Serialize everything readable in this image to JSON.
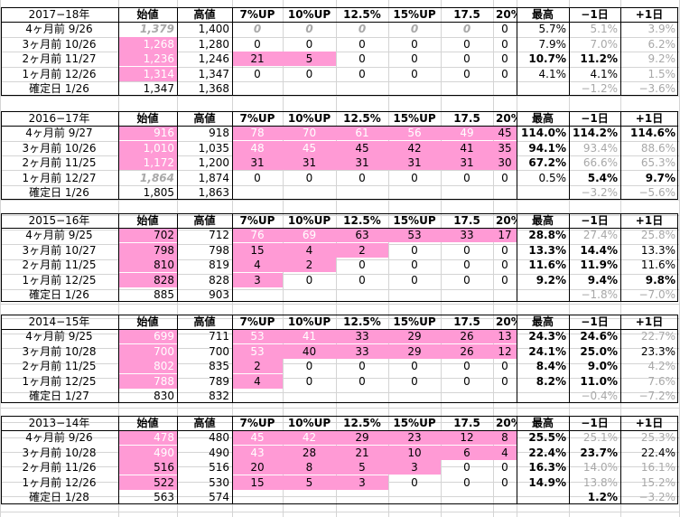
{
  "headers": {
    "start": "始値",
    "high": "高値",
    "p7": "7%UP",
    "p10": "10%UP",
    "p125": "12.5%",
    "p15": "15%UP",
    "p175": "17.5",
    "p20": "20%UP",
    "max": "最高",
    "minus1": "−1日",
    "plus1": "+1日"
  },
  "blocks": [
    {
      "title": "2017−18年",
      "rows": [
        {
          "label": "4ヶ月前  9/26",
          "start": "1,379",
          "start_style": "gi",
          "high": "1,400",
          "p": [
            "0",
            "0",
            "0",
            "0",
            "0",
            "0"
          ],
          "p_style": [
            "gi",
            "gi",
            "gi",
            "gi",
            "gi",
            ""
          ],
          "p_pink": [
            0,
            0,
            0,
            0,
            0,
            0
          ],
          "max": "5.7%",
          "max_bold": false,
          "m1": "5.1%",
          "m1_style": "g",
          "p1": "3.9%",
          "p1_style": "g"
        },
        {
          "label": "3ヶ月前  10/26",
          "start": "1,268",
          "start_style": "pw",
          "high": "1,280",
          "p": [
            "0",
            "0",
            "0",
            "0",
            "0",
            "0"
          ],
          "p_style": [
            "",
            "",
            "",
            "",
            "",
            ""
          ],
          "p_pink": [
            0,
            0,
            0,
            0,
            0,
            0
          ],
          "max": "7.9%",
          "max_bold": false,
          "m1": "7.0%",
          "m1_style": "g",
          "p1": "6.2%",
          "p1_style": "g"
        },
        {
          "label": "2ヶ月前  11/27",
          "start": "1,236",
          "start_style": "pw",
          "high": "1,246",
          "p": [
            "21",
            "5",
            "0",
            "0",
            "0",
            "0"
          ],
          "p_style": [
            "",
            "",
            "",
            "",
            "",
            ""
          ],
          "p_pink": [
            1,
            1,
            0,
            0,
            0,
            0
          ],
          "max": "10.7%",
          "max_bold": true,
          "m1": "11.2%",
          "m1_style": "b",
          "p1": "9.2%",
          "p1_style": "g"
        },
        {
          "label": "1ヶ月前  12/26",
          "start": "1,314",
          "start_style": "pw",
          "high": "1,347",
          "p": [
            "0",
            "0",
            "0",
            "0",
            "0",
            "0"
          ],
          "p_style": [
            "",
            "",
            "",
            "",
            "",
            ""
          ],
          "p_pink": [
            0,
            0,
            0,
            0,
            0,
            0
          ],
          "max": "4.1%",
          "max_bold": false,
          "m1": "4.1%",
          "m1_style": "n",
          "p1": "1.5%",
          "p1_style": "g"
        }
      ],
      "confirm": {
        "label": "確定日  1/26",
        "start": "1,347",
        "high": "1,368",
        "m1": "−1.2%",
        "m1_style": "g",
        "p1": "−3.6%",
        "p1_style": "g"
      }
    },
    {
      "title": "2016−17年",
      "rows": [
        {
          "label": "4ヶ月前  9/27",
          "start": "916",
          "start_style": "pw",
          "high": "918",
          "p": [
            "78",
            "70",
            "61",
            "56",
            "49",
            "45"
          ],
          "p_style": [
            "w",
            "w",
            "w",
            "w",
            "w",
            ""
          ],
          "p_pink": [
            1,
            1,
            1,
            1,
            1,
            1
          ],
          "max": "114.0%",
          "max_bold": true,
          "m1": "114.2%",
          "m1_style": "b",
          "p1": "114.6%",
          "p1_style": "b"
        },
        {
          "label": "3ヶ月前  10/26",
          "start": "1,010",
          "start_style": "pw",
          "high": "1,035",
          "p": [
            "48",
            "45",
            "45",
            "42",
            "41",
            "35"
          ],
          "p_style": [
            "w",
            "w",
            "",
            "",
            "",
            ""
          ],
          "p_pink": [
            1,
            1,
            1,
            1,
            1,
            1
          ],
          "max": "94.1%",
          "max_bold": true,
          "m1": "93.4%",
          "m1_style": "g",
          "p1": "88.6%",
          "p1_style": "g"
        },
        {
          "label": "2ヶ月前  11/25",
          "start": "1,172",
          "start_style": "pw",
          "high": "1,200",
          "p": [
            "31",
            "31",
            "31",
            "31",
            "31",
            "30"
          ],
          "p_style": [
            "",
            "",
            "",
            "",
            "",
            ""
          ],
          "p_pink": [
            1,
            1,
            1,
            1,
            1,
            1
          ],
          "max": "67.2%",
          "max_bold": true,
          "m1": "66.6%",
          "m1_style": "g",
          "p1": "65.3%",
          "p1_style": "g"
        },
        {
          "label": "1ヶ月前  12/27",
          "start": "1,864",
          "start_style": "gi",
          "high": "1,874",
          "p": [
            "0",
            "0",
            "0",
            "0",
            "0",
            "0"
          ],
          "p_style": [
            "",
            "",
            "",
            "",
            "",
            ""
          ],
          "p_pink": [
            0,
            0,
            0,
            0,
            0,
            0
          ],
          "max": "0.5%",
          "max_bold": false,
          "m1": "5.4%",
          "m1_style": "b",
          "p1": "9.7%",
          "p1_style": "b"
        }
      ],
      "confirm": {
        "label": "確定日  1/26",
        "start": "1,805",
        "high": "1,863",
        "m1": "−3.2%",
        "m1_style": "g",
        "p1": "−5.6%",
        "p1_style": "g"
      }
    },
    {
      "title": "2015−16年",
      "rows": [
        {
          "label": "4ヶ月前  9/25",
          "start": "702",
          "start_style": "p",
          "high": "712",
          "p": [
            "76",
            "69",
            "63",
            "53",
            "33",
            "17"
          ],
          "p_style": [
            "w",
            "w",
            "",
            "",
            "",
            ""
          ],
          "p_pink": [
            1,
            1,
            1,
            1,
            1,
            1
          ],
          "max": "28.8%",
          "max_bold": true,
          "m1": "27.4%",
          "m1_style": "g",
          "p1": "25.8%",
          "p1_style": "g"
        },
        {
          "label": "3ヶ月前  10/27",
          "start": "798",
          "start_style": "p",
          "high": "798",
          "p": [
            "15",
            "4",
            "2",
            "0",
            "0",
            "0"
          ],
          "p_style": [
            "",
            "",
            "",
            "",
            "",
            ""
          ],
          "p_pink": [
            1,
            1,
            1,
            0,
            0,
            0
          ],
          "max": "13.3%",
          "max_bold": true,
          "m1": "14.4%",
          "m1_style": "b",
          "p1": "13.3%",
          "p1_style": "n"
        },
        {
          "label": "2ヶ月前  11/25",
          "start": "810",
          "start_style": "p",
          "high": "819",
          "p": [
            "4",
            "2",
            "0",
            "0",
            "0",
            "0"
          ],
          "p_style": [
            "",
            "",
            "",
            "",
            "",
            ""
          ],
          "p_pink": [
            1,
            1,
            0,
            0,
            0,
            0
          ],
          "max": "11.6%",
          "max_bold": true,
          "m1": "11.9%",
          "m1_style": "b",
          "p1": "11.6%",
          "p1_style": "n"
        },
        {
          "label": "1ヶ月前  12/25",
          "start": "828",
          "start_style": "p",
          "high": "828",
          "p": [
            "3",
            "0",
            "0",
            "0",
            "0",
            "0"
          ],
          "p_style": [
            "",
            "",
            "",
            "",
            "",
            ""
          ],
          "p_pink": [
            1,
            0,
            0,
            0,
            0,
            0
          ],
          "max": "9.2%",
          "max_bold": true,
          "m1": "9.4%",
          "m1_style": "b",
          "p1": "9.8%",
          "p1_style": "b"
        }
      ],
      "confirm": {
        "label": "確定日  1/26",
        "start": "885",
        "high": "903",
        "m1": "−1.8%",
        "m1_style": "g",
        "p1": "−7.0%",
        "p1_style": "g"
      }
    },
    {
      "title": "2014−15年",
      "rows": [
        {
          "label": "4ヶ月前  9/25",
          "start": "699",
          "start_style": "pw",
          "high": "711",
          "p": [
            "53",
            "41",
            "33",
            "29",
            "26",
            "13"
          ],
          "p_style": [
            "w",
            "w",
            "",
            "",
            "",
            ""
          ],
          "p_pink": [
            1,
            1,
            1,
            1,
            1,
            1
          ],
          "max": "24.3%",
          "max_bold": true,
          "m1": "24.6%",
          "m1_style": "b",
          "p1": "22.7%",
          "p1_style": "g"
        },
        {
          "label": "3ヶ月前  10/28",
          "start": "700",
          "start_style": "pw",
          "high": "700",
          "p": [
            "53",
            "40",
            "33",
            "29",
            "26",
            "12"
          ],
          "p_style": [
            "w",
            "",
            "",
            "",
            "",
            ""
          ],
          "p_pink": [
            1,
            1,
            1,
            1,
            1,
            1
          ],
          "max": "24.1%",
          "max_bold": true,
          "m1": "25.0%",
          "m1_style": "b",
          "p1": "23.3%",
          "p1_style": "n"
        },
        {
          "label": "2ヶ月前  11/25",
          "start": "802",
          "start_style": "pw",
          "high": "835",
          "p": [
            "2",
            "0",
            "0",
            "0",
            "0",
            "0"
          ],
          "p_style": [
            "",
            "",
            "",
            "",
            "",
            ""
          ],
          "p_pink": [
            1,
            0,
            0,
            0,
            0,
            0
          ],
          "max": "8.4%",
          "max_bold": true,
          "m1": "9.0%",
          "m1_style": "b",
          "p1": "4.2%",
          "p1_style": "g"
        },
        {
          "label": "1ヶ月前  12/25",
          "start": "788",
          "start_style": "pw",
          "high": "789",
          "p": [
            "4",
            "0",
            "0",
            "0",
            "0",
            "0"
          ],
          "p_style": [
            "",
            "",
            "",
            "",
            "",
            ""
          ],
          "p_pink": [
            1,
            0,
            0,
            0,
            0,
            0
          ],
          "max": "8.2%",
          "max_bold": true,
          "m1": "11.0%",
          "m1_style": "b",
          "p1": "7.6%",
          "p1_style": "g"
        }
      ],
      "confirm": {
        "label": "確定日  1/27",
        "start": "830",
        "high": "832",
        "m1": "−0.4%",
        "m1_style": "g",
        "p1": "−7.2%",
        "p1_style": "g"
      }
    },
    {
      "title": "2013−14年",
      "rows": [
        {
          "label": "4ヶ月前  9/26",
          "start": "478",
          "start_style": "pw",
          "high": "480",
          "p": [
            "45",
            "42",
            "29",
            "23",
            "12",
            "8"
          ],
          "p_style": [
            "w",
            "w",
            "",
            "",
            "",
            ""
          ],
          "p_pink": [
            1,
            1,
            1,
            1,
            1,
            1
          ],
          "max": "25.5%",
          "max_bold": true,
          "m1": "25.1%",
          "m1_style": "g",
          "p1": "25.3%",
          "p1_style": "g"
        },
        {
          "label": "3ヶ月前  10/28",
          "start": "490",
          "start_style": "pw",
          "high": "490",
          "p": [
            "43",
            "28",
            "21",
            "10",
            "6",
            "4"
          ],
          "p_style": [
            "w",
            "",
            "",
            "",
            "",
            ""
          ],
          "p_pink": [
            1,
            1,
            1,
            1,
            1,
            1
          ],
          "max": "22.4%",
          "max_bold": true,
          "m1": "23.7%",
          "m1_style": "b",
          "p1": "22.4%",
          "p1_style": "n"
        },
        {
          "label": "2ヶ月前  11/26",
          "start": "516",
          "start_style": "p",
          "high": "516",
          "p": [
            "20",
            "8",
            "5",
            "3",
            "0",
            "0"
          ],
          "p_style": [
            "",
            "",
            "",
            "",
            "",
            ""
          ],
          "p_pink": [
            1,
            1,
            1,
            1,
            0,
            0
          ],
          "max": "16.3%",
          "max_bold": true,
          "m1": "14.0%",
          "m1_style": "g",
          "p1": "16.1%",
          "p1_style": "g"
        },
        {
          "label": "1ヶ月前  12/26",
          "start": "522",
          "start_style": "p",
          "high": "530",
          "p": [
            "15",
            "5",
            "3",
            "0",
            "0",
            "0"
          ],
          "p_style": [
            "",
            "",
            "",
            "",
            "",
            ""
          ],
          "p_pink": [
            1,
            1,
            1,
            0,
            0,
            0
          ],
          "max": "14.9%",
          "max_bold": true,
          "m1": "13.8%",
          "m1_style": "g",
          "p1": "15.2%",
          "p1_style": "g"
        }
      ],
      "confirm": {
        "label": "確定日  1/28",
        "start": "563",
        "high": "574",
        "m1": "1.2%",
        "m1_style": "b",
        "p1": "−3.2%",
        "p1_style": "g"
      }
    }
  ],
  "colors": {
    "pink": "#ff9ad5",
    "gray_text": "#a8a8a8",
    "grid": "#d4d4d4"
  }
}
